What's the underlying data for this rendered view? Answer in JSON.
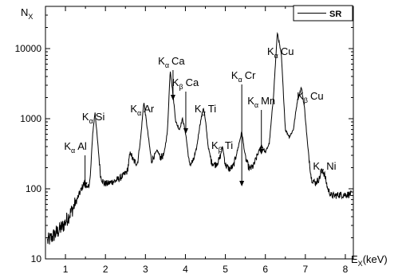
{
  "chart_data": {
    "type": "line",
    "xlabel": "E",
    "xlabel_sub": "X",
    "xlabel_unit": "(keV)",
    "ylabel": "N",
    "ylabel_sub": "X",
    "xlim": [
      0.5,
      8.2
    ],
    "ylim": [
      10,
      40000
    ],
    "yscale": "log",
    "grid": false,
    "legend": {
      "position": "top-right",
      "entries": [
        "SR"
      ]
    },
    "x_ticks": [
      "1",
      "2",
      "3",
      "4",
      "5",
      "6",
      "7",
      "8"
    ],
    "y_ticks": [
      "10",
      "100",
      "1000",
      "10000"
    ],
    "series": [
      {
        "name": "SR",
        "color": "#000000",
        "x": [
          0.55,
          0.65,
          0.75,
          0.85,
          0.95,
          1.05,
          1.15,
          1.25,
          1.35,
          1.42,
          1.49,
          1.55,
          1.62,
          1.68,
          1.74,
          1.8,
          1.88,
          1.96,
          2.05,
          2.15,
          2.25,
          2.35,
          2.45,
          2.55,
          2.62,
          2.7,
          2.8,
          2.88,
          2.96,
          3.05,
          3.15,
          3.22,
          3.3,
          3.38,
          3.46,
          3.55,
          3.62,
          3.69,
          3.76,
          3.85,
          3.93,
          4.01,
          4.1,
          4.2,
          4.28,
          4.36,
          4.45,
          4.51,
          4.57,
          4.65,
          4.75,
          4.85,
          4.93,
          5.0,
          5.1,
          5.2,
          5.3,
          5.41,
          5.5,
          5.6,
          5.7,
          5.8,
          5.9,
          6.0,
          6.1,
          6.2,
          6.3,
          6.4,
          6.5,
          6.6,
          6.7,
          6.8,
          6.9,
          6.98,
          7.06,
          7.15,
          7.25,
          7.35,
          7.42,
          7.48,
          7.56,
          7.65,
          7.75,
          7.85,
          7.95,
          8.05,
          8.15
        ],
        "y": [
          18,
          20,
          23,
          26,
          30,
          38,
          48,
          62,
          85,
          105,
          128,
          95,
          140,
          600,
          1250,
          500,
          150,
          120,
          118,
          125,
          130,
          140,
          155,
          180,
          330,
          250,
          230,
          520,
          1750,
          700,
          250,
          300,
          350,
          280,
          300,
          650,
          5000,
          2200,
          900,
          700,
          1000,
          600,
          220,
          250,
          380,
          800,
          1450,
          850,
          400,
          240,
          220,
          260,
          400,
          220,
          190,
          210,
          350,
          650,
          280,
          190,
          210,
          300,
          420,
          330,
          450,
          2000,
          17000,
          8000,
          700,
          550,
          700,
          1800,
          2800,
          1400,
          400,
          140,
          120,
          140,
          185,
          160,
          100,
          80,
          80,
          82,
          82,
          83,
          84
        ]
      }
    ],
    "annotations": [
      {
        "label": "K",
        "sub": "α",
        "element": "Al",
        "x": 1.49,
        "arrow": true
      },
      {
        "label": "K",
        "sub": "α",
        "element": "Si",
        "x": 1.74,
        "arrow": false
      },
      {
        "label": "K",
        "sub": "α",
        "element": "Ar",
        "x": 2.96,
        "arrow": false
      },
      {
        "label": "K",
        "sub": "α",
        "element": "Ca",
        "x": 3.69,
        "arrow": true
      },
      {
        "label": "K",
        "sub": "β",
        "element": "Ca",
        "x": 4.01,
        "arrow": true
      },
      {
        "label": "K",
        "sub": "α",
        "element": "Ti",
        "x": 4.51,
        "arrow": false
      },
      {
        "label": "K",
        "sub": "β",
        "element": "Ti",
        "x": 4.93,
        "arrow": false
      },
      {
        "label": "K",
        "sub": "α",
        "element": "Cr",
        "x": 5.41,
        "arrow": true
      },
      {
        "label": "K",
        "sub": "α",
        "element": "Mn",
        "x": 5.9,
        "arrow": true
      },
      {
        "label": "K",
        "sub": "α",
        "element": "Cu",
        "x": 6.3,
        "arrow": false
      },
      {
        "label": "K",
        "sub": "β",
        "element": "Cu",
        "x": 6.98,
        "arrow": false
      },
      {
        "label": "K",
        "sub": "α",
        "element": "Ni",
        "x": 7.48,
        "arrow": false
      }
    ]
  }
}
